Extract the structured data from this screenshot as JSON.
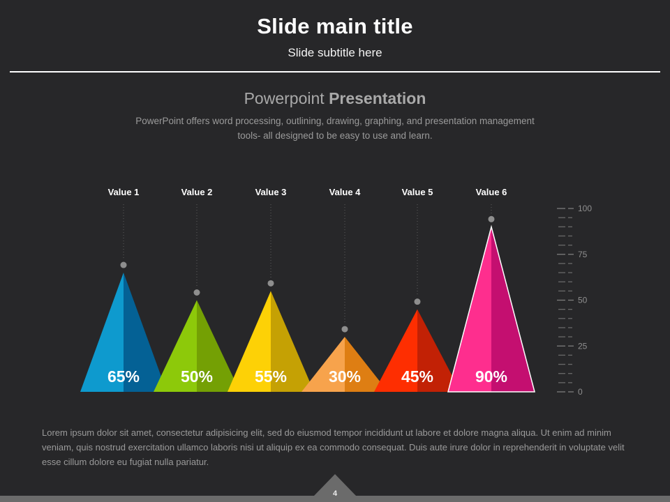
{
  "slide": {
    "title": "Slide main title",
    "subtitle": "Slide subtitle here",
    "heading_regular": "Powerpoint",
    "heading_bold": "Presentation",
    "description_line1": "PowerPoint offers word processing, outlining, drawing, graphing, and presentation management",
    "description_line2": "tools- all designed to be easy to use and learn.",
    "body_text": "Lorem ipsum dolor sit amet, consectetur adipisicing elit, sed do eiusmod tempor incididunt ut labore et dolore magna aliqua. Ut enim ad minim veniam, quis nostrud exercitation ullamco laboris nisi ut aliquip ex ea commodo consequat. Duis aute irure dolor in reprehenderit in voluptate velit esse cillum dolore eu fugiat nulla pariatur.",
    "page_number": "4"
  },
  "chart_data": {
    "type": "bar",
    "shape": "triangle",
    "title": "Powerpoint Presentation",
    "categories": [
      "Value 1",
      "Value 2",
      "Value 3",
      "Value 4",
      "Value 5",
      "Value 6"
    ],
    "values": [
      65,
      50,
      55,
      30,
      45,
      90
    ],
    "value_labels": [
      "65%",
      "50%",
      "55%",
      "30%",
      "45%",
      "90%"
    ],
    "ylim": [
      0,
      100
    ],
    "major_ticks": [
      0,
      25,
      50,
      75,
      100
    ],
    "minor_tick_step": 5,
    "axis_side": "right",
    "grid": false,
    "legend": false,
    "series_colors": [
      {
        "left": "#0e9ace",
        "right": "#046195"
      },
      {
        "left": "#8dc90a",
        "right": "#74a004"
      },
      {
        "left": "#fdd106",
        "right": "#c5a104"
      },
      {
        "left": "#f7a34c",
        "right": "#de7e13"
      },
      {
        "left": "#fe2e01",
        "right": "#c22105"
      },
      {
        "left": "#fe2e8e",
        "right": "#c40f70"
      }
    ],
    "highlight_series_index": 5,
    "highlight_outline_color": "#ffffff"
  },
  "colors": {
    "background": "#272729",
    "title_text": "#ffffff",
    "heading_text": "#a9a9a9",
    "body_text": "#9a9a9a",
    "axis_label": "#8f8f8f",
    "marker_dot": "#8e8e8e",
    "footer": "#6b6b6b"
  }
}
